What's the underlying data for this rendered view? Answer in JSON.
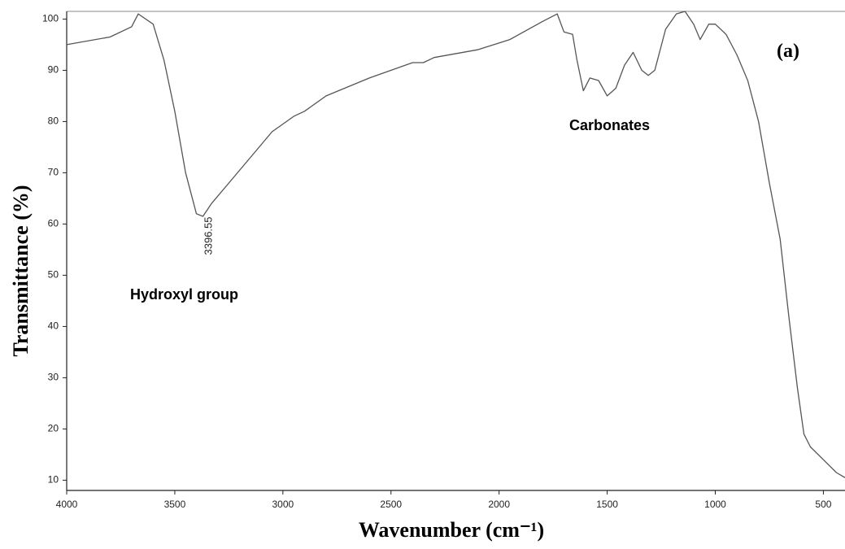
{
  "chart_data": {
    "type": "line",
    "x_label": "Wavenumber (cm⁻¹)",
    "y_label": "Transmittance (%)",
    "annotations": [
      "Hydroxyl group",
      "Carbonates",
      "(a)",
      "3396.55"
    ],
    "xlim": [
      4000,
      400
    ],
    "ylim": [
      8,
      101.5
    ],
    "xticks": [
      4000,
      3500,
      3000,
      2500,
      2000,
      1500,
      1000,
      500
    ],
    "yticks": [
      10,
      20,
      30,
      40,
      50,
      60,
      70,
      80,
      90,
      100
    ],
    "series": [
      {
        "color": "#555555",
        "x": [
          4000,
          3800,
          3700,
          3669,
          3600,
          3550,
          3500,
          3450,
          3400,
          3370,
          3330,
          3250,
          3150,
          3050,
          2950,
          2900,
          2800,
          2600,
          2400,
          2350,
          2300,
          2100,
          1950,
          1800,
          1731,
          1700,
          1660,
          1640,
          1610,
          1580,
          1540,
          1500,
          1460,
          1420,
          1380,
          1340,
          1310,
          1280,
          1230,
          1180,
          1140,
          1100,
          1070,
          1030,
          1000,
          950,
          900,
          850,
          800,
          750,
          700,
          660,
          620,
          590,
          560,
          500,
          440,
          400
        ],
        "values": [
          95,
          96.5,
          98.5,
          101,
          99,
          92,
          82,
          70,
          62,
          61.5,
          64,
          68,
          73,
          78,
          81,
          82,
          85,
          88.5,
          91.5,
          91.5,
          92.5,
          94,
          96,
          99.5,
          101,
          97.5,
          97,
          92,
          86,
          88.5,
          88,
          85,
          86.5,
          91,
          93.5,
          90,
          89,
          90,
          98,
          101,
          101.5,
          99,
          96,
          99,
          99,
          97,
          93,
          88,
          80,
          68,
          57,
          42,
          28,
          19,
          16.5,
          14,
          11.5,
          10.5
        ]
      }
    ]
  }
}
